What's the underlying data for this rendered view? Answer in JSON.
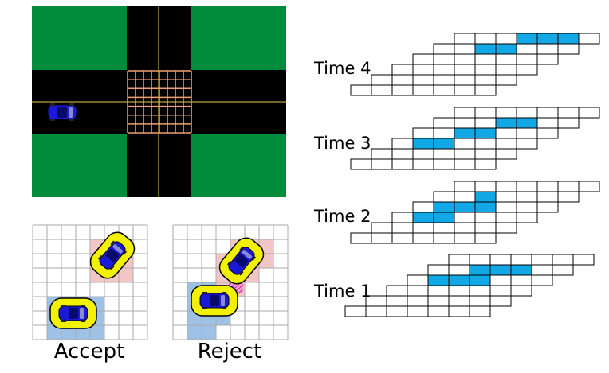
{
  "figure": {
    "panels": {
      "intersection": {
        "road_color": "#000000",
        "grass_color": "#008c3a",
        "grid_color": "#f0a070",
        "lane_line_color": "#e6c84a",
        "car_body_color": "#1a1ad6",
        "intersection_grid": {
          "cols": 8,
          "rows": 7
        }
      },
      "accept": {
        "caption": "Accept",
        "tile_cols": 8,
        "tile_rows": 8,
        "reserved_color": "#f3c6c6",
        "own_color": "#9ec1e6",
        "car_outline": "#f2f200",
        "conflict": false
      },
      "reject": {
        "caption": "Reject",
        "tile_cols": 8,
        "tile_rows": 8,
        "reserved_color": "#f3c6c6",
        "own_color": "#9ec1e6",
        "car_outline": "#f2f200",
        "conflict": true,
        "conflict_color": "#e02aa0"
      }
    },
    "timeline": {
      "highlight_color": "#12a8e6",
      "steps": [
        {
          "label": "Time 4",
          "highlight": [
            [
              0,
              3
            ],
            [
              0,
              4
            ],
            [
              0,
              5
            ],
            [
              1,
              2
            ],
            [
              1,
              3
            ]
          ]
        },
        {
          "label": "Time 3",
          "highlight": [
            [
              1,
              3
            ],
            [
              1,
              4
            ],
            [
              2,
              2
            ],
            [
              2,
              3
            ],
            [
              3,
              1
            ],
            [
              3,
              2
            ]
          ]
        },
        {
          "label": "Time 2",
          "highlight": [
            [
              1,
              2
            ],
            [
              2,
              1
            ],
            [
              2,
              2
            ],
            [
              2,
              3
            ],
            [
              3,
              1
            ],
            [
              3,
              2
            ]
          ]
        },
        {
          "label": "Time 1",
          "highlight": [
            [
              1,
              2
            ],
            [
              1,
              3
            ],
            [
              1,
              4
            ],
            [
              2,
              1
            ],
            [
              2,
              2
            ],
            [
              2,
              3
            ]
          ]
        }
      ]
    }
  }
}
